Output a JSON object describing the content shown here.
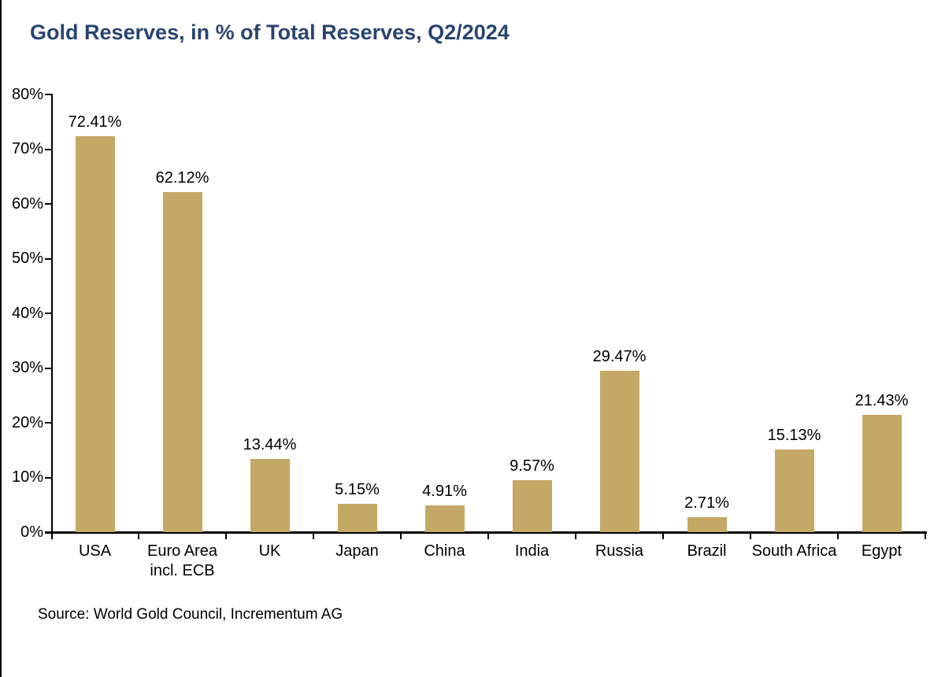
{
  "title": "Gold Reserves, in % of Total Reserves, Q2/2024",
  "source_note": "Source: World Gold Council, Incrementum AG",
  "colors": {
    "bar": "#C4A866",
    "title": "#2A4470",
    "axis": "#000000",
    "background": "#FFFFFF"
  },
  "chart_data": {
    "type": "bar",
    "title": "Gold Reserves, in % of Total Reserves, Q2/2024",
    "categories": [
      "USA",
      "Euro Area\nincl. ECB",
      "UK",
      "Japan",
      "China",
      "India",
      "Russia",
      "Brazil",
      "South Africa",
      "Egypt"
    ],
    "values": [
      72.41,
      62.12,
      13.44,
      5.15,
      4.91,
      9.57,
      29.47,
      2.71,
      15.13,
      21.43
    ],
    "value_labels": [
      "72.41%",
      "62.12%",
      "13.44%",
      "5.15%",
      "4.91%",
      "9.57%",
      "29.47%",
      "2.71%",
      "15.13%",
      "21.43%"
    ],
    "xlabel": "",
    "ylabel": "",
    "ylim": [
      0,
      80
    ],
    "ytick_step": 10,
    "ytick_labels": [
      "80%",
      "70%",
      "60%",
      "50%",
      "40%",
      "30%",
      "20%",
      "10%",
      "0%"
    ],
    "grid": false,
    "legend": "none",
    "bar_color": "#C4A866",
    "source": "Source: World Gold Council, Incrementum AG"
  }
}
